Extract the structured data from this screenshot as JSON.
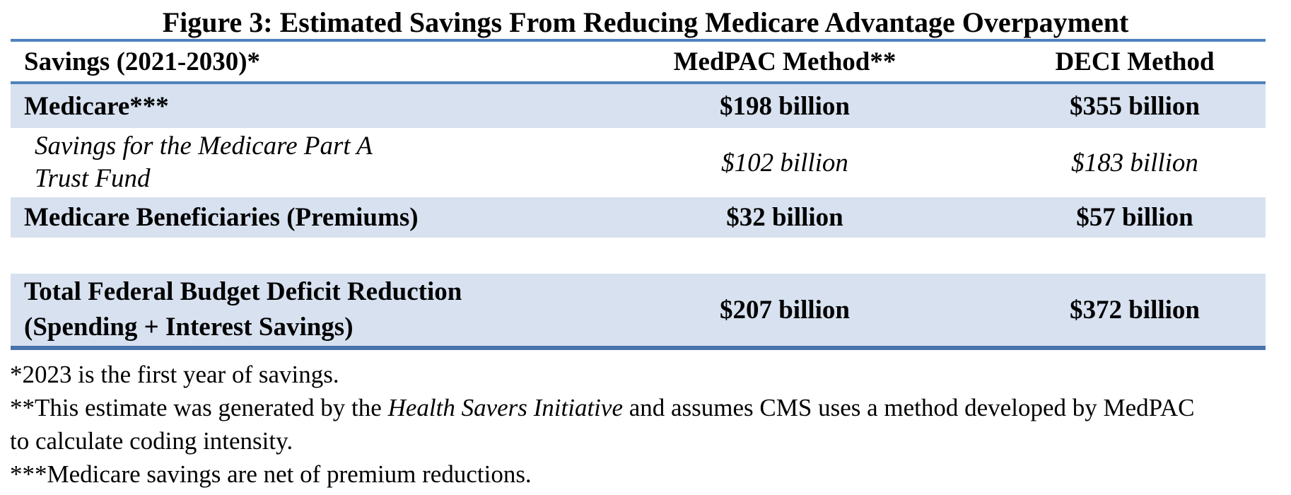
{
  "figure": {
    "title": "Figure 3: Estimated Savings From Reducing Medicare Advantage Overpayment"
  },
  "table": {
    "header": {
      "col1": "Savings (2021-2030)*",
      "col2": "MedPAC Method**",
      "col3": "DECI Method"
    },
    "rows": [
      {
        "lines": [
          "Medicare***"
        ],
        "medpac": "$198 billion",
        "deci": "$355 billion"
      },
      {
        "lines": [
          "Savings for the Medicare Part A",
          "Trust Fund"
        ],
        "medpac": "$102 billion",
        "deci": "$183 billion"
      },
      {
        "lines": [
          "Medicare Beneficiaries (Premiums)"
        ],
        "medpac": "$32 billion",
        "deci": "$57 billion"
      },
      {
        "lines": [
          "Total Federal Budget Deficit Reduction",
          "(Spending + Interest Savings)"
        ],
        "medpac": "$207 billion",
        "deci": "$372 billion"
      }
    ]
  },
  "footnotes": {
    "note1": "*2023 is the first year of savings.",
    "note2_part1": "**This estimate was generated by the ",
    "note2_italic": "Health Savers Initiative",
    "note2_part2": " and assumes CMS uses a method developed by MedPAC",
    "note2_part3": "to calculate coding intensity.",
    "note3": "***Medicare savings are net of premium reductions."
  },
  "colors": {
    "row_shade": "#d7e1f0",
    "rule_blue": "#4f81bd",
    "rule_bottom": "#4a72ab",
    "text": "#000000"
  },
  "chart_data": {
    "type": "table",
    "title": "Figure 3: Estimated Savings From Reducing Medicare Advantage Overpayment",
    "columns": [
      "Savings (2021-2030)*",
      "MedPAC Method**",
      "DECI Method"
    ],
    "rows": [
      [
        "Medicare***",
        "$198 billion",
        "$355 billion"
      ],
      [
        "Savings for the Medicare Part A Trust Fund",
        "$102 billion",
        "$183 billion"
      ],
      [
        "Medicare Beneficiaries (Premiums)",
        "$32 billion",
        "$57 billion"
      ],
      [
        "Total Federal Budget Deficit Reduction (Spending + Interest Savings)",
        "$207 billion",
        "$372 billion"
      ]
    ],
    "footnotes": [
      "*2023 is the first year of savings.",
      "**This estimate was generated by the Health Savers Initiative and assumes CMS uses a method developed by MedPAC to calculate coding intensity.",
      "***Medicare savings are net of premium reductions."
    ]
  }
}
